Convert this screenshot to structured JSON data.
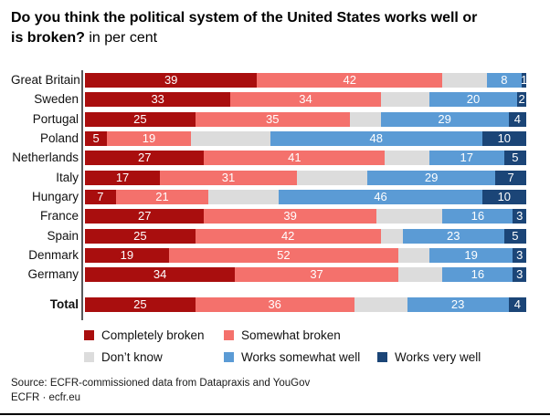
{
  "title": {
    "line1": "Do you think the political system of the United States works well or",
    "line2_bold": "is broken?",
    "line2_suffix": " in per cent"
  },
  "chart_data": {
    "type": "bar",
    "orientation": "horizontal",
    "stacked": true,
    "xlim": [
      0,
      100
    ],
    "unit": "per cent",
    "bold_category": "Total",
    "value_label_color": "#ffffff",
    "legend_position": "bottom",
    "categories": [
      "Great Britain",
      "Sweden",
      "Portugal",
      "Poland",
      "Netherlands",
      "Italy",
      "Hungary",
      "France",
      "Spain",
      "Denmark",
      "Germany",
      "Total"
    ],
    "series": [
      {
        "name": "Completely broken",
        "color": "#a90e0e",
        "labeled": true,
        "values": [
          39,
          33,
          25,
          5,
          27,
          17,
          7,
          27,
          25,
          19,
          34,
          25
        ]
      },
      {
        "name": "Somewhat broken",
        "color": "#f4716c",
        "labeled": true,
        "values": [
          42,
          34,
          35,
          19,
          41,
          31,
          21,
          39,
          42,
          52,
          37,
          36
        ]
      },
      {
        "name": "Don’t know",
        "color": "#dcdcdc",
        "labeled": false,
        "values": [
          10,
          11,
          7,
          18,
          10,
          16,
          16,
          15,
          5,
          7,
          10,
          12
        ]
      },
      {
        "name": "Works somewhat well",
        "color": "#5b9bd5",
        "labeled": true,
        "values": [
          8,
          20,
          29,
          48,
          17,
          29,
          46,
          16,
          23,
          19,
          16,
          23
        ]
      },
      {
        "name": "Works very well",
        "color": "#1b4577",
        "labeled": true,
        "values": [
          1,
          2,
          4,
          10,
          5,
          7,
          10,
          3,
          5,
          3,
          3,
          4
        ]
      }
    ]
  },
  "source": {
    "line1": "Source: ECFR-commissioned data from Datapraxis and YouGov",
    "line2": "ECFR · ecfr.eu"
  }
}
